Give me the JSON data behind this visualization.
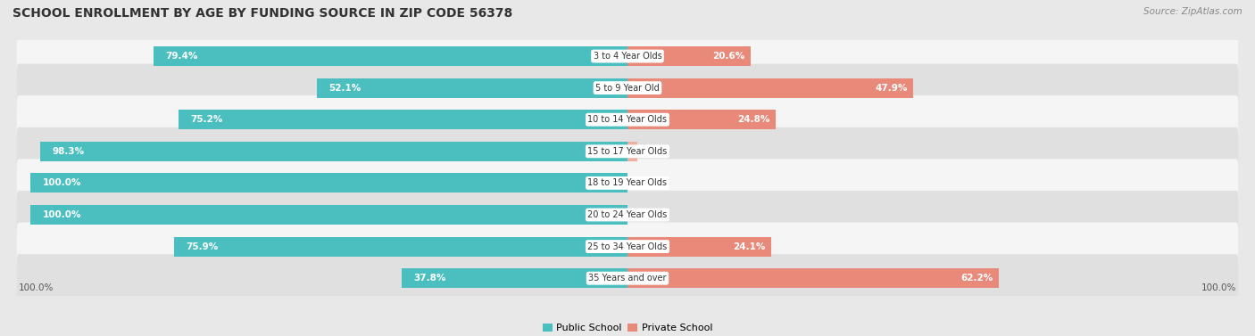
{
  "title": "SCHOOL ENROLLMENT BY AGE BY FUNDING SOURCE IN ZIP CODE 56378",
  "source": "Source: ZipAtlas.com",
  "categories": [
    "3 to 4 Year Olds",
    "5 to 9 Year Old",
    "10 to 14 Year Olds",
    "15 to 17 Year Olds",
    "18 to 19 Year Olds",
    "20 to 24 Year Olds",
    "25 to 34 Year Olds",
    "35 Years and over"
  ],
  "public": [
    79.4,
    52.1,
    75.2,
    98.3,
    100.0,
    100.0,
    75.9,
    37.8
  ],
  "private": [
    20.6,
    47.9,
    24.8,
    1.7,
    0.0,
    0.0,
    24.1,
    62.2
  ],
  "public_color": "#4bbfbf",
  "private_color": "#e8897a",
  "private_color_light": "#f0b0a0",
  "bg_color": "#e8e8e8",
  "row_bg_even": "#f5f5f5",
  "row_bg_odd": "#e0e0e0",
  "title_fontsize": 10,
  "source_fontsize": 7.5,
  "bar_label_fontsize": 7.5,
  "cat_label_fontsize": 7,
  "legend_fontsize": 8,
  "axis_label_fontsize": 7.5
}
